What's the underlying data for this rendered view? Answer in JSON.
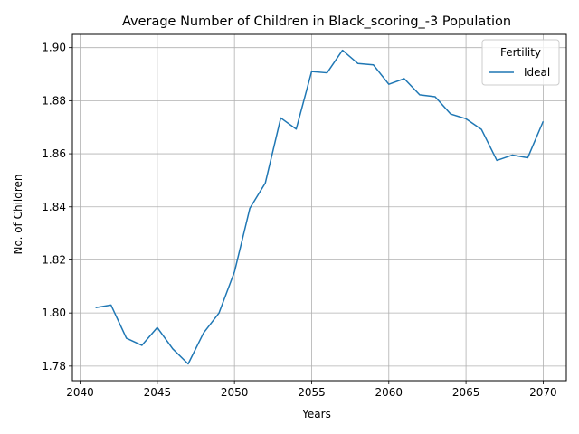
{
  "chart_data": {
    "type": "line",
    "title": "Average Number of Children in Black_scoring_-3 Population",
    "xlabel": "Years",
    "ylabel": "No. of Children",
    "xlim": [
      2039.5,
      2071.5
    ],
    "ylim": [
      1.7745,
      1.905
    ],
    "xticks": [
      2040,
      2045,
      2050,
      2055,
      2060,
      2065,
      2070
    ],
    "yticks": [
      1.78,
      1.8,
      1.82,
      1.84,
      1.86,
      1.88,
      1.9
    ],
    "xtick_labels": [
      "2040",
      "2045",
      "2050",
      "2055",
      "2060",
      "2065",
      "2070"
    ],
    "ytick_labels": [
      "1.78",
      "1.80",
      "1.82",
      "1.84",
      "1.86",
      "1.88",
      "1.90"
    ],
    "grid": true,
    "legend": {
      "title": "Fertility",
      "placement": "top-right"
    },
    "series": [
      {
        "name": "Ideal",
        "color": "#1f77b4",
        "x": [
          2041,
          2042,
          2043,
          2044,
          2045,
          2046,
          2047,
          2048,
          2049,
          2050,
          2051,
          2052,
          2053,
          2054,
          2055,
          2056,
          2057,
          2058,
          2059,
          2060,
          2061,
          2062,
          2063,
          2064,
          2065,
          2066,
          2067,
          2068,
          2069,
          2070
        ],
        "y": [
          1.802,
          1.803,
          1.7905,
          1.7878,
          1.7945,
          1.7865,
          1.7808,
          1.7925,
          1.8,
          1.8155,
          1.8395,
          1.849,
          1.8735,
          1.8693,
          1.891,
          1.8905,
          1.899,
          1.894,
          1.8935,
          1.8862,
          1.8883,
          1.8822,
          1.8815,
          1.875,
          1.8732,
          1.8692,
          1.8575,
          1.8595,
          1.8585,
          1.8722
        ]
      }
    ]
  }
}
